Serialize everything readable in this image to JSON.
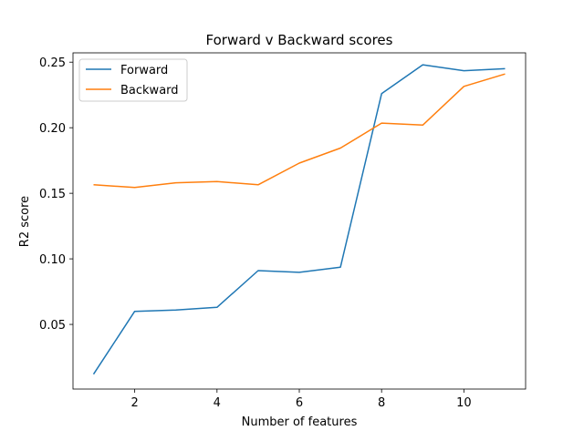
{
  "chart_data": {
    "type": "line",
    "title": "Forward v Backward scores",
    "xlabel": "Number of features",
    "ylabel": "R2 score",
    "xlim": [
      0.5,
      11.5
    ],
    "ylim": [
      0.0007,
      0.2571
    ],
    "xticks": [
      2,
      4,
      6,
      8,
      10
    ],
    "yticks": [
      0.05,
      0.1,
      0.15,
      0.2,
      0.25
    ],
    "xtick_labels": [
      "2",
      "4",
      "6",
      "8",
      "10"
    ],
    "ytick_labels": [
      "0.05",
      "0.10",
      "0.15",
      "0.20",
      "0.25"
    ],
    "grid": false,
    "legend_position": "upper-left",
    "x": [
      1,
      2,
      3,
      4,
      5,
      6,
      7,
      8,
      9,
      10,
      11
    ],
    "series": [
      {
        "name": "Forward",
        "color": "#1f77b4",
        "values": [
          0.012,
          0.06,
          0.061,
          0.063,
          0.091,
          0.0897,
          0.0937,
          0.226,
          0.248,
          0.2435,
          0.245
        ]
      },
      {
        "name": "Backward",
        "color": "#ff7f0e",
        "values": [
          0.1565,
          0.1545,
          0.158,
          0.159,
          0.1565,
          0.173,
          0.1845,
          0.2035,
          0.202,
          0.2315,
          0.241
        ]
      }
    ]
  }
}
